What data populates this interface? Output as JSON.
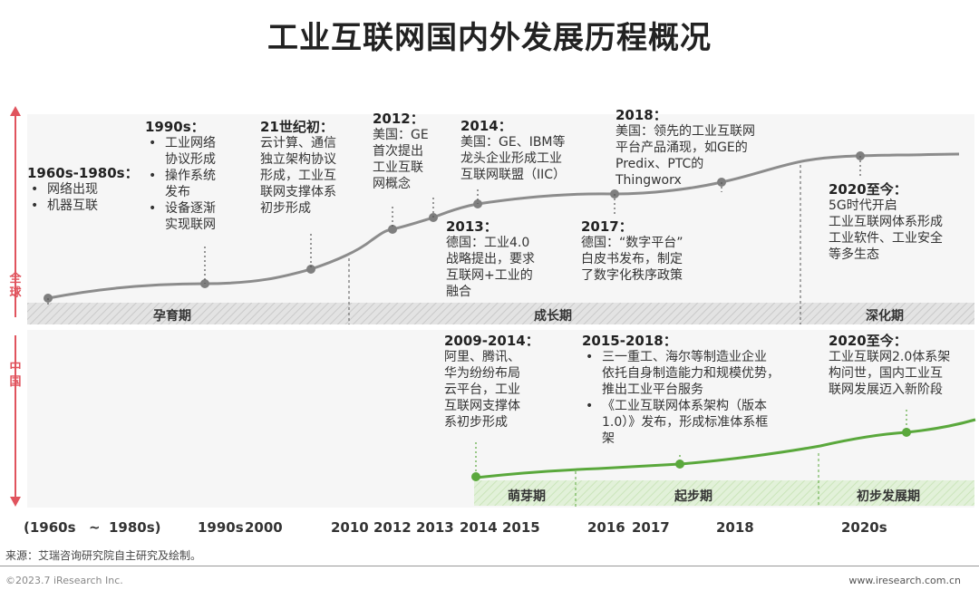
{
  "title": "工业互联网国内外发展历程概况",
  "side_labels": {
    "global": "全球",
    "china": "中国"
  },
  "global": {
    "phases": [
      "孕育期",
      "成长期",
      "深化期"
    ],
    "milestones": [
      {
        "heading": "1960s-1980s：",
        "items": [
          "网络出现",
          "机器互联"
        ]
      },
      {
        "heading": "1990s：",
        "items": [
          "工业网络",
          "协议形成",
          "操作系统",
          "发布",
          "设备逐渐",
          "实现联网"
        ]
      },
      {
        "heading": "21世纪初：",
        "lines": [
          "云计算、通信",
          "独立架构协议",
          "形成，工业互",
          "联网支撑体系",
          "初步形成"
        ]
      },
      {
        "heading": "2012：",
        "lines": [
          "美国：GE",
          "首次提出",
          "工业互联",
          "网概念"
        ]
      },
      {
        "heading": "2013：",
        "lines": [
          "德国：工业4.0",
          "战略提出，要求",
          "互联网+工业的",
          "融合"
        ]
      },
      {
        "heading": "2014：",
        "lines": [
          "美国：GE、IBM等",
          "龙头企业形成工业",
          "互联网联盟（IIC）"
        ]
      },
      {
        "heading": "2017：",
        "lines": [
          "德国：“数字平台”",
          "白皮书发布，制定",
          "了数字化秩序政策"
        ]
      },
      {
        "heading": "2018：",
        "lines": [
          "美国：领先的工业互联网",
          "平台产品涌现，如GE的",
          "Predix、PTC的",
          "Thingworx"
        ]
      },
      {
        "heading": "2020至今：",
        "lines": [
          "5G时代开启",
          "工业互联网体系形成",
          "工业软件、工业安全",
          "等多生态"
        ]
      }
    ]
  },
  "china": {
    "phases": [
      "萌芽期",
      "起步期",
      "初步发展期"
    ],
    "milestones": [
      {
        "heading": "2009-2014：",
        "lines": [
          "阿里、腾讯、",
          "华为纷纷布局",
          "云平台，工业",
          "互联网支撑体",
          "系初步形成"
        ]
      },
      {
        "heading": "2015-2018：",
        "items": [
          "三一重工、海尔等制造业企业",
          "依托自身制造能力和规模优势，",
          "推出工业平台服务",
          "《工业互联网体系架构（版本",
          "1.0）》发布，形成标准体系框",
          "架"
        ]
      },
      {
        "heading": "2020至今：",
        "lines": [
          "工业互联网2.0体系架",
          "构问世，国内工业互",
          "联网发展迈入新阶段"
        ]
      }
    ]
  },
  "axis_ticks": [
    "(1960s",
    "~",
    "1980s)",
    "1990s",
    "2000",
    "2010",
    "2012",
    "2013",
    "2014",
    "2015",
    "2016",
    "2017",
    "2018",
    "2020s"
  ],
  "footer": {
    "source": "来源：艾瑞咨询研究院自主研究及绘制。",
    "copyright": "©2023.7 iResearch Inc.",
    "website": "www.iresearch.com.cn"
  },
  "colors": {
    "global_line": "#8c8c8c",
    "china_line": "#5aa83c",
    "arrow": "#e0535d",
    "band_grey": "#dcdcdc",
    "band_green": "#dcefd2"
  }
}
